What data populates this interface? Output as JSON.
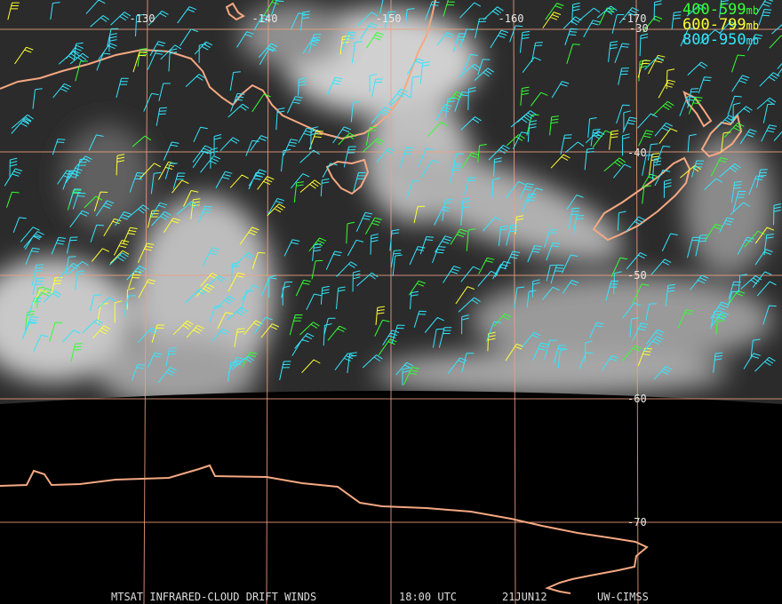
{
  "map": {
    "longitude_labels": [
      "-130",
      "-140",
      "-150",
      "-160",
      "-170"
    ],
    "latitude_labels": [
      "-30",
      "-40",
      "-50",
      "-60",
      "-70"
    ],
    "legend": [
      {
        "range": "400-599",
        "unit": "mb",
        "color": "#33ff33"
      },
      {
        "range": "600-799",
        "unit": "mb",
        "color": "#ffff33"
      },
      {
        "range": "800-950",
        "unit": "mb",
        "color": "#33e6ff"
      }
    ],
    "footer": {
      "product": "MTSAT INFRARED-CLOUD DRIFT WINDS",
      "time": "18:00 UTC",
      "date": "21JUN12",
      "source": "UW-CIMSS"
    }
  }
}
